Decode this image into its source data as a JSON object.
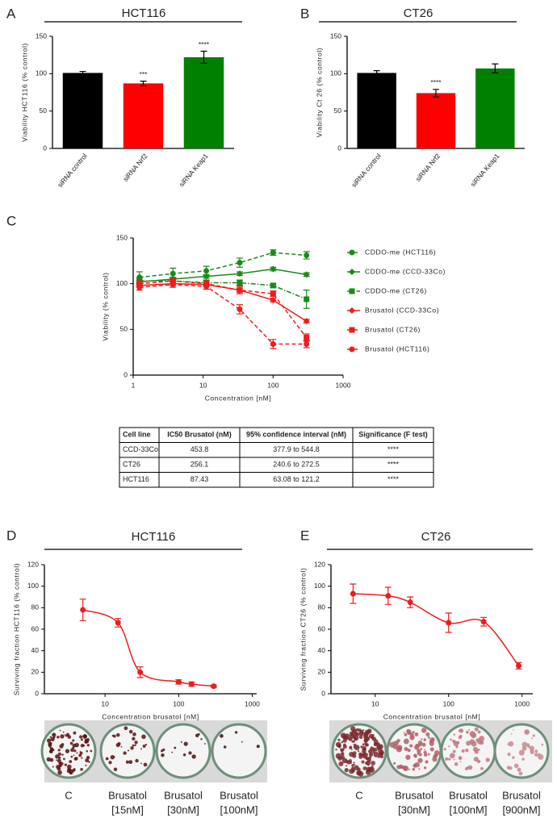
{
  "chart_data": [
    {
      "type": "bar",
      "panel": "A",
      "title": "HCT116",
      "y_label": "Viability HCT116 (% control)",
      "categories": [
        "siRNA control",
        "siRNA Nrf2",
        "siRNA Keap1"
      ],
      "values": [
        101,
        87,
        122
      ],
      "errors": [
        2,
        3,
        8
      ],
      "colors": [
        "#000000",
        "#ff0000",
        "#008000"
      ],
      "ylim": [
        0,
        150
      ],
      "yticks": [
        0,
        50,
        100,
        150
      ],
      "annotations": [
        {
          "x": "siRNA Nrf2",
          "text": "***"
        },
        {
          "x": "siRNA Keap1",
          "text": "****"
        }
      ]
    },
    {
      "type": "bar",
      "panel": "B",
      "title": "CT26",
      "y_label": "Viability Ct 26 (% control)",
      "categories": [
        "siRNA control",
        "siRNA Nrf2",
        "siRNA Keap1"
      ],
      "values": [
        101,
        74,
        107
      ],
      "errors": [
        3,
        5,
        6
      ],
      "colors": [
        "#000000",
        "#ff0000",
        "#008000"
      ],
      "ylim": [
        0,
        150
      ],
      "yticks": [
        0,
        50,
        100,
        150
      ],
      "annotations": [
        {
          "x": "siRNA Nrf2",
          "text": "****"
        }
      ]
    },
    {
      "type": "line",
      "panel": "C",
      "y_label": "Viability (% control)",
      "x_label": "Concentration [nM]",
      "x_scale": "log",
      "x": [
        1.23,
        3.7,
        11.1,
        33.3,
        100,
        300
      ],
      "xlim": [
        1,
        1000
      ],
      "xticks": [
        1,
        10,
        100,
        1000
      ],
      "ylim": [
        0,
        150
      ],
      "yticks": [
        0,
        50,
        100,
        150
      ],
      "series": [
        {
          "name": "CDDO-me (HCT116)",
          "color": "#1a8a1a",
          "marker": "circle",
          "dash": "dashed",
          "values": [
            107,
            111,
            114,
            123,
            134,
            131
          ],
          "errors": [
            6,
            6,
            5,
            5,
            3,
            4
          ]
        },
        {
          "name": "CDDO-me (CCD-33Co)",
          "color": "#1a8a1a",
          "marker": "diamond",
          "dash": "solid",
          "values": [
            102,
            105,
            108,
            111,
            116,
            110
          ],
          "errors": [
            2,
            2,
            2,
            2,
            2,
            2
          ]
        },
        {
          "name": "CDDO-me (CT26)",
          "color": "#1a8a1a",
          "marker": "square",
          "dash": "dashdot",
          "values": [
            103,
            103,
            101,
            101,
            98,
            83
          ],
          "errors": [
            3,
            3,
            3,
            3,
            2,
            10
          ]
        },
        {
          "name": "Brusatol (CCD-33Co)",
          "color": "#ee1c1c",
          "marker": "diamond",
          "dash": "solid",
          "values": [
            98,
            100,
            99,
            93,
            82,
            59
          ],
          "errors": [
            2,
            2,
            2,
            2,
            2,
            2
          ]
        },
        {
          "name": "Brusatol (CT26)",
          "color": "#ee1c1c",
          "marker": "square",
          "dash": "dashed",
          "values": [
            100,
            103,
            100,
            93,
            89,
            41
          ],
          "errors": [
            3,
            3,
            3,
            4,
            3,
            4
          ]
        },
        {
          "name": "Brusatol (HCT116)",
          "color": "#ee1c1c",
          "marker": "circle",
          "dash": "dashed",
          "values": [
            96,
            99,
            97,
            72,
            34,
            34
          ],
          "errors": [
            3,
            3,
            3,
            5,
            5,
            4
          ]
        }
      ]
    },
    {
      "type": "scatter",
      "panel": "D",
      "title": "HCT116",
      "y_label": "Surviving fraction HCT116 (% control)",
      "x_label": "Concentration brusatol  [nM]",
      "x_scale": "log",
      "x": [
        5,
        15,
        30,
        100,
        150,
        300
      ],
      "values": [
        78,
        66,
        20,
        11,
        9,
        7
      ],
      "errors": [
        10,
        4,
        5,
        2,
        2,
        1
      ],
      "color": "#ee1c1c",
      "xlim": [
        1.5,
        1150
      ],
      "xticks": [
        10,
        100,
        1000
      ],
      "ylim": [
        0,
        120
      ],
      "yticks": [
        0,
        20,
        40,
        60,
        80,
        100,
        120
      ]
    },
    {
      "type": "scatter",
      "panel": "E",
      "title": "CT26",
      "y_label": "Surviving fraction CT26 (% control)",
      "x_label": "Concentration brusatol  [nM]",
      "x_scale": "log",
      "x": [
        5,
        15,
        30,
        100,
        300,
        900
      ],
      "values": [
        93,
        91,
        85,
        66,
        67,
        26
      ],
      "errors": [
        9,
        8,
        5,
        9,
        4,
        3
      ],
      "color": "#ee1c1c",
      "xlim": [
        2.5,
        1400
      ],
      "xticks": [
        10,
        100,
        1000
      ],
      "ylim": [
        0,
        120
      ],
      "yticks": [
        0,
        20,
        40,
        60,
        80,
        100,
        120
      ]
    }
  ],
  "table": {
    "columns": [
      "Cell line",
      "IC50 Brusatol (nM)",
      "95% confidence interval (nM)",
      "Significance  (F test)"
    ],
    "rows": [
      [
        "CCD-33Co",
        "453.8",
        "377.9 to 544.8",
        "****"
      ],
      [
        "CT26",
        "256.1",
        "240.6 to 272.5",
        "****"
      ],
      [
        "HCT116",
        "87.43",
        "63.08 to 121.2",
        "****"
      ]
    ]
  },
  "plates": [
    [
      {
        "name": "C"
      },
      {
        "name": "Brusatol",
        "dose": "[15nM]"
      },
      {
        "name": "Brusatol",
        "dose": "[30nM]"
      },
      {
        "name": "Brusatol",
        "dose": "[100nM]"
      }
    ],
    [
      {
        "name": "C"
      },
      {
        "name": "Brusatol",
        "dose": "[30nM]"
      },
      {
        "name": "Brusatol",
        "dose": "[100nM]"
      },
      {
        "name": "Brusatol",
        "dose": "[900nM]"
      }
    ]
  ]
}
